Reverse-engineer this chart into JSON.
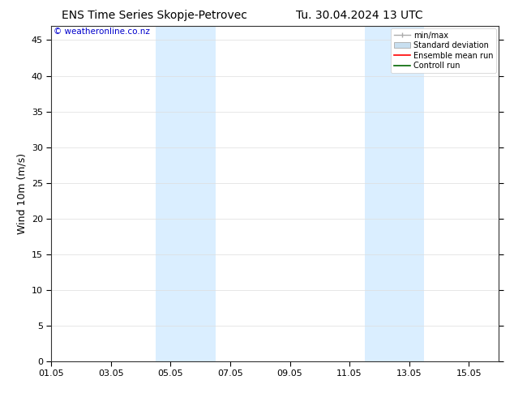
{
  "title_left": "ENS Time Series Skopje-Petrovec",
  "title_right": "Tu. 30.04.2024 13 UTC",
  "ylabel": "Wind 10m (m/s)",
  "watermark": "© weatheronline.co.nz",
  "bg_color": "#ffffff",
  "plot_bg_color": "#ffffff",
  "ylim": [
    0,
    47
  ],
  "yticks": [
    0,
    5,
    10,
    15,
    20,
    25,
    30,
    35,
    40,
    45
  ],
  "xlim": [
    0,
    15
  ],
  "xtick_labels": [
    "01.05",
    "03.05",
    "05.05",
    "07.05",
    "09.05",
    "11.05",
    "13.05",
    "15.05"
  ],
  "xtick_positions": [
    0,
    2,
    4,
    6,
    8,
    10,
    12,
    14
  ],
  "shaded_regions": [
    {
      "x_start": 3.5,
      "x_end": 5.5
    },
    {
      "x_start": 10.5,
      "x_end": 12.5
    }
  ],
  "shade_color": "#daeeff",
  "legend_labels": [
    "min/max",
    "Standard deviation",
    "Ensemble mean run",
    "Controll run"
  ],
  "legend_colors": [
    "#aaaaaa",
    "#c8dff0",
    "#ff0000",
    "#006600"
  ],
  "title_fontsize": 10,
  "axis_label_fontsize": 9,
  "tick_fontsize": 8,
  "watermark_color": "#0000cc",
  "watermark_fontsize": 7.5,
  "legend_fontsize": 7,
  "spine_color": "#333333",
  "grid_color": "#dddddd"
}
